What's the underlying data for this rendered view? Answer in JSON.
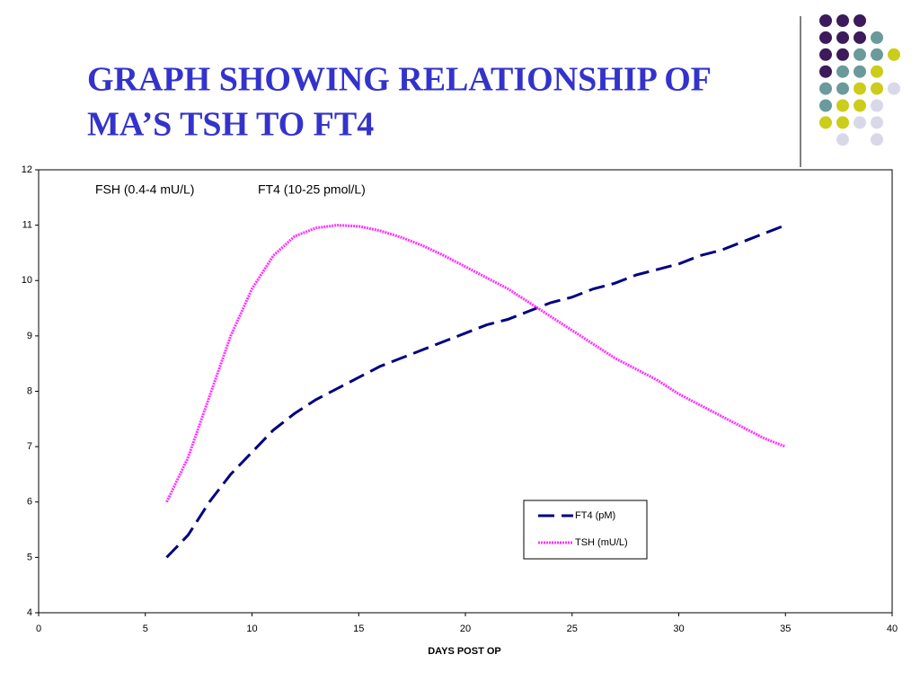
{
  "chart_data": {
    "type": "line",
    "title_lines": [
      "GRAPH SHOWING RELATIONSHIP OF",
      "MA’S TSH TO FT4"
    ],
    "annotations": [
      "FSH (0.4-4 mU/L)",
      "FT4 (10-25 pmol/L)"
    ],
    "x_label": "DAYS POST OP",
    "x": [
      6,
      7,
      8,
      9,
      10,
      11,
      12,
      13,
      14,
      15,
      16,
      17,
      18,
      19,
      20,
      21,
      22,
      23,
      24,
      25,
      26,
      27,
      28,
      29,
      30,
      31,
      32,
      33,
      34,
      35
    ],
    "series": [
      {
        "name": "FT4 (pM)",
        "color": "#000080",
        "style": "dashed",
        "values": [
          5,
          5.4,
          6,
          6.5,
          6.9,
          7.3,
          7.6,
          7.85,
          8.05,
          8.25,
          8.45,
          8.6,
          8.75,
          8.9,
          9.05,
          9.2,
          9.3,
          9.45,
          9.6,
          9.7,
          9.85,
          9.95,
          10.1,
          10.2,
          10.3,
          10.45,
          10.55,
          10.7,
          10.85,
          11
        ]
      },
      {
        "name": "TSH (mU/L)",
        "color": "#ff33ff",
        "style": "dotted",
        "values": [
          6,
          6.8,
          7.9,
          9,
          9.85,
          10.45,
          10.8,
          10.95,
          11,
          10.98,
          10.9,
          10.78,
          10.63,
          10.45,
          10.25,
          10.05,
          9.85,
          9.6,
          9.35,
          9.1,
          8.85,
          8.6,
          8.4,
          8.2,
          7.95,
          7.75,
          7.55,
          7.35,
          7.15,
          7
        ]
      }
    ],
    "xlim": [
      0,
      40
    ],
    "xticks": [
      0,
      5,
      10,
      15,
      20,
      25,
      30,
      35,
      40
    ],
    "ylim": [
      4,
      12
    ],
    "yticks": [
      4,
      5,
      6,
      7,
      8,
      9,
      10,
      11,
      12
    ],
    "grid": true,
    "legend": "lower-right"
  }
}
